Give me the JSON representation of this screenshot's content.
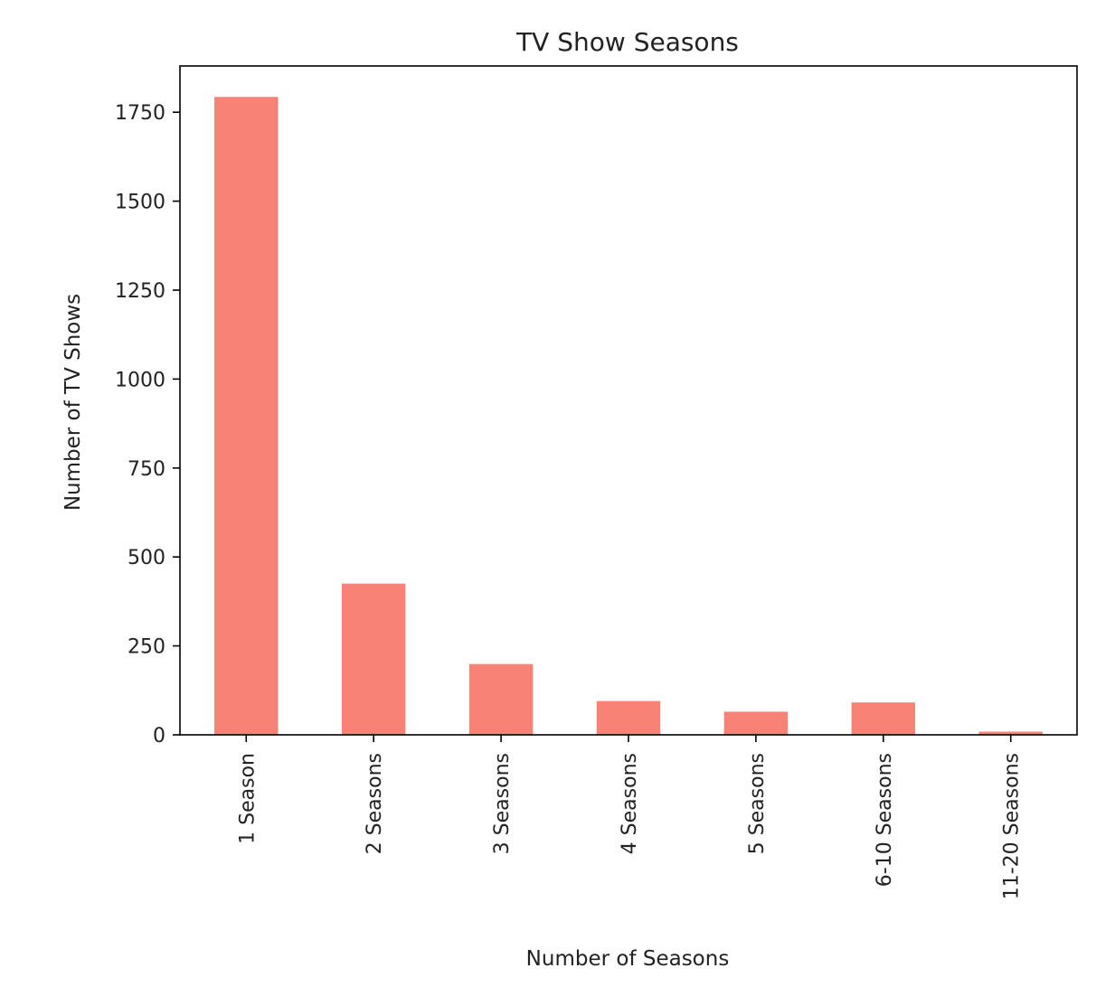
{
  "chart_data": {
    "type": "bar",
    "title": "TV Show Seasons",
    "xlabel": "Number of Seasons",
    "ylabel": "Number of TV Shows",
    "categories": [
      "1 Season",
      "2 Seasons",
      "3 Seasons",
      "4 Seasons",
      "5 Seasons",
      "6-10 Seasons",
      "11-20 Seasons"
    ],
    "values": [
      1793,
      425,
      199,
      95,
      65,
      91,
      9
    ],
    "ylim": [
      0,
      1880
    ],
    "yticks": [
      0,
      250,
      500,
      750,
      1000,
      1250,
      1500,
      1750
    ],
    "grid": false,
    "bar_color": "#f78275"
  }
}
